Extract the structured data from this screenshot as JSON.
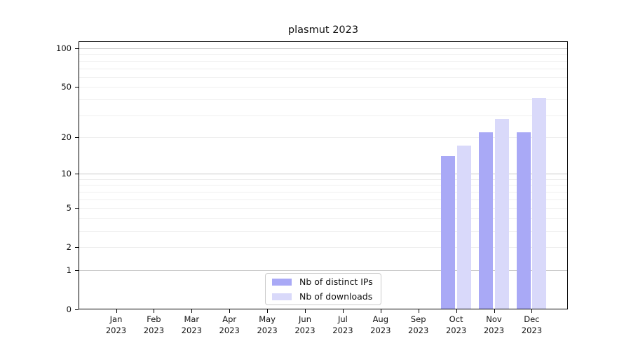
{
  "chart_data": {
    "type": "bar",
    "title": "plasmut 2023",
    "year_label": "2023",
    "categories": [
      "Jan",
      "Feb",
      "Mar",
      "Apr",
      "May",
      "Jun",
      "Jul",
      "Aug",
      "Sep",
      "Oct",
      "Nov",
      "Dec"
    ],
    "series": [
      {
        "name": "Nb of distinct IPs",
        "color": "#a9a9f6",
        "values": [
          0,
          0,
          0,
          0,
          0,
          0,
          0,
          0,
          0,
          14,
          22,
          22
        ]
      },
      {
        "name": "Nb of downloads",
        "color": "#d9d9fa",
        "values": [
          0,
          0,
          0,
          0,
          0,
          0,
          0,
          0,
          0,
          17,
          28,
          41
        ]
      }
    ],
    "y_axis": {
      "scale": "log10(1+x)",
      "max": 100,
      "ticks": [
        0,
        1,
        2,
        5,
        10,
        20,
        50,
        100
      ],
      "major_gridlines": [
        1,
        10,
        100
      ],
      "minor_gridlines": [
        2,
        3,
        4,
        5,
        6,
        7,
        8,
        9,
        20,
        30,
        40,
        50,
        60,
        70,
        80,
        90
      ]
    },
    "legend": {
      "position": "lower center (inside plot)"
    },
    "colors": {
      "major_grid": "#c9c9c9",
      "minor_grid": "#eeeeee",
      "spine": "#000000",
      "background": "#ffffff"
    }
  }
}
